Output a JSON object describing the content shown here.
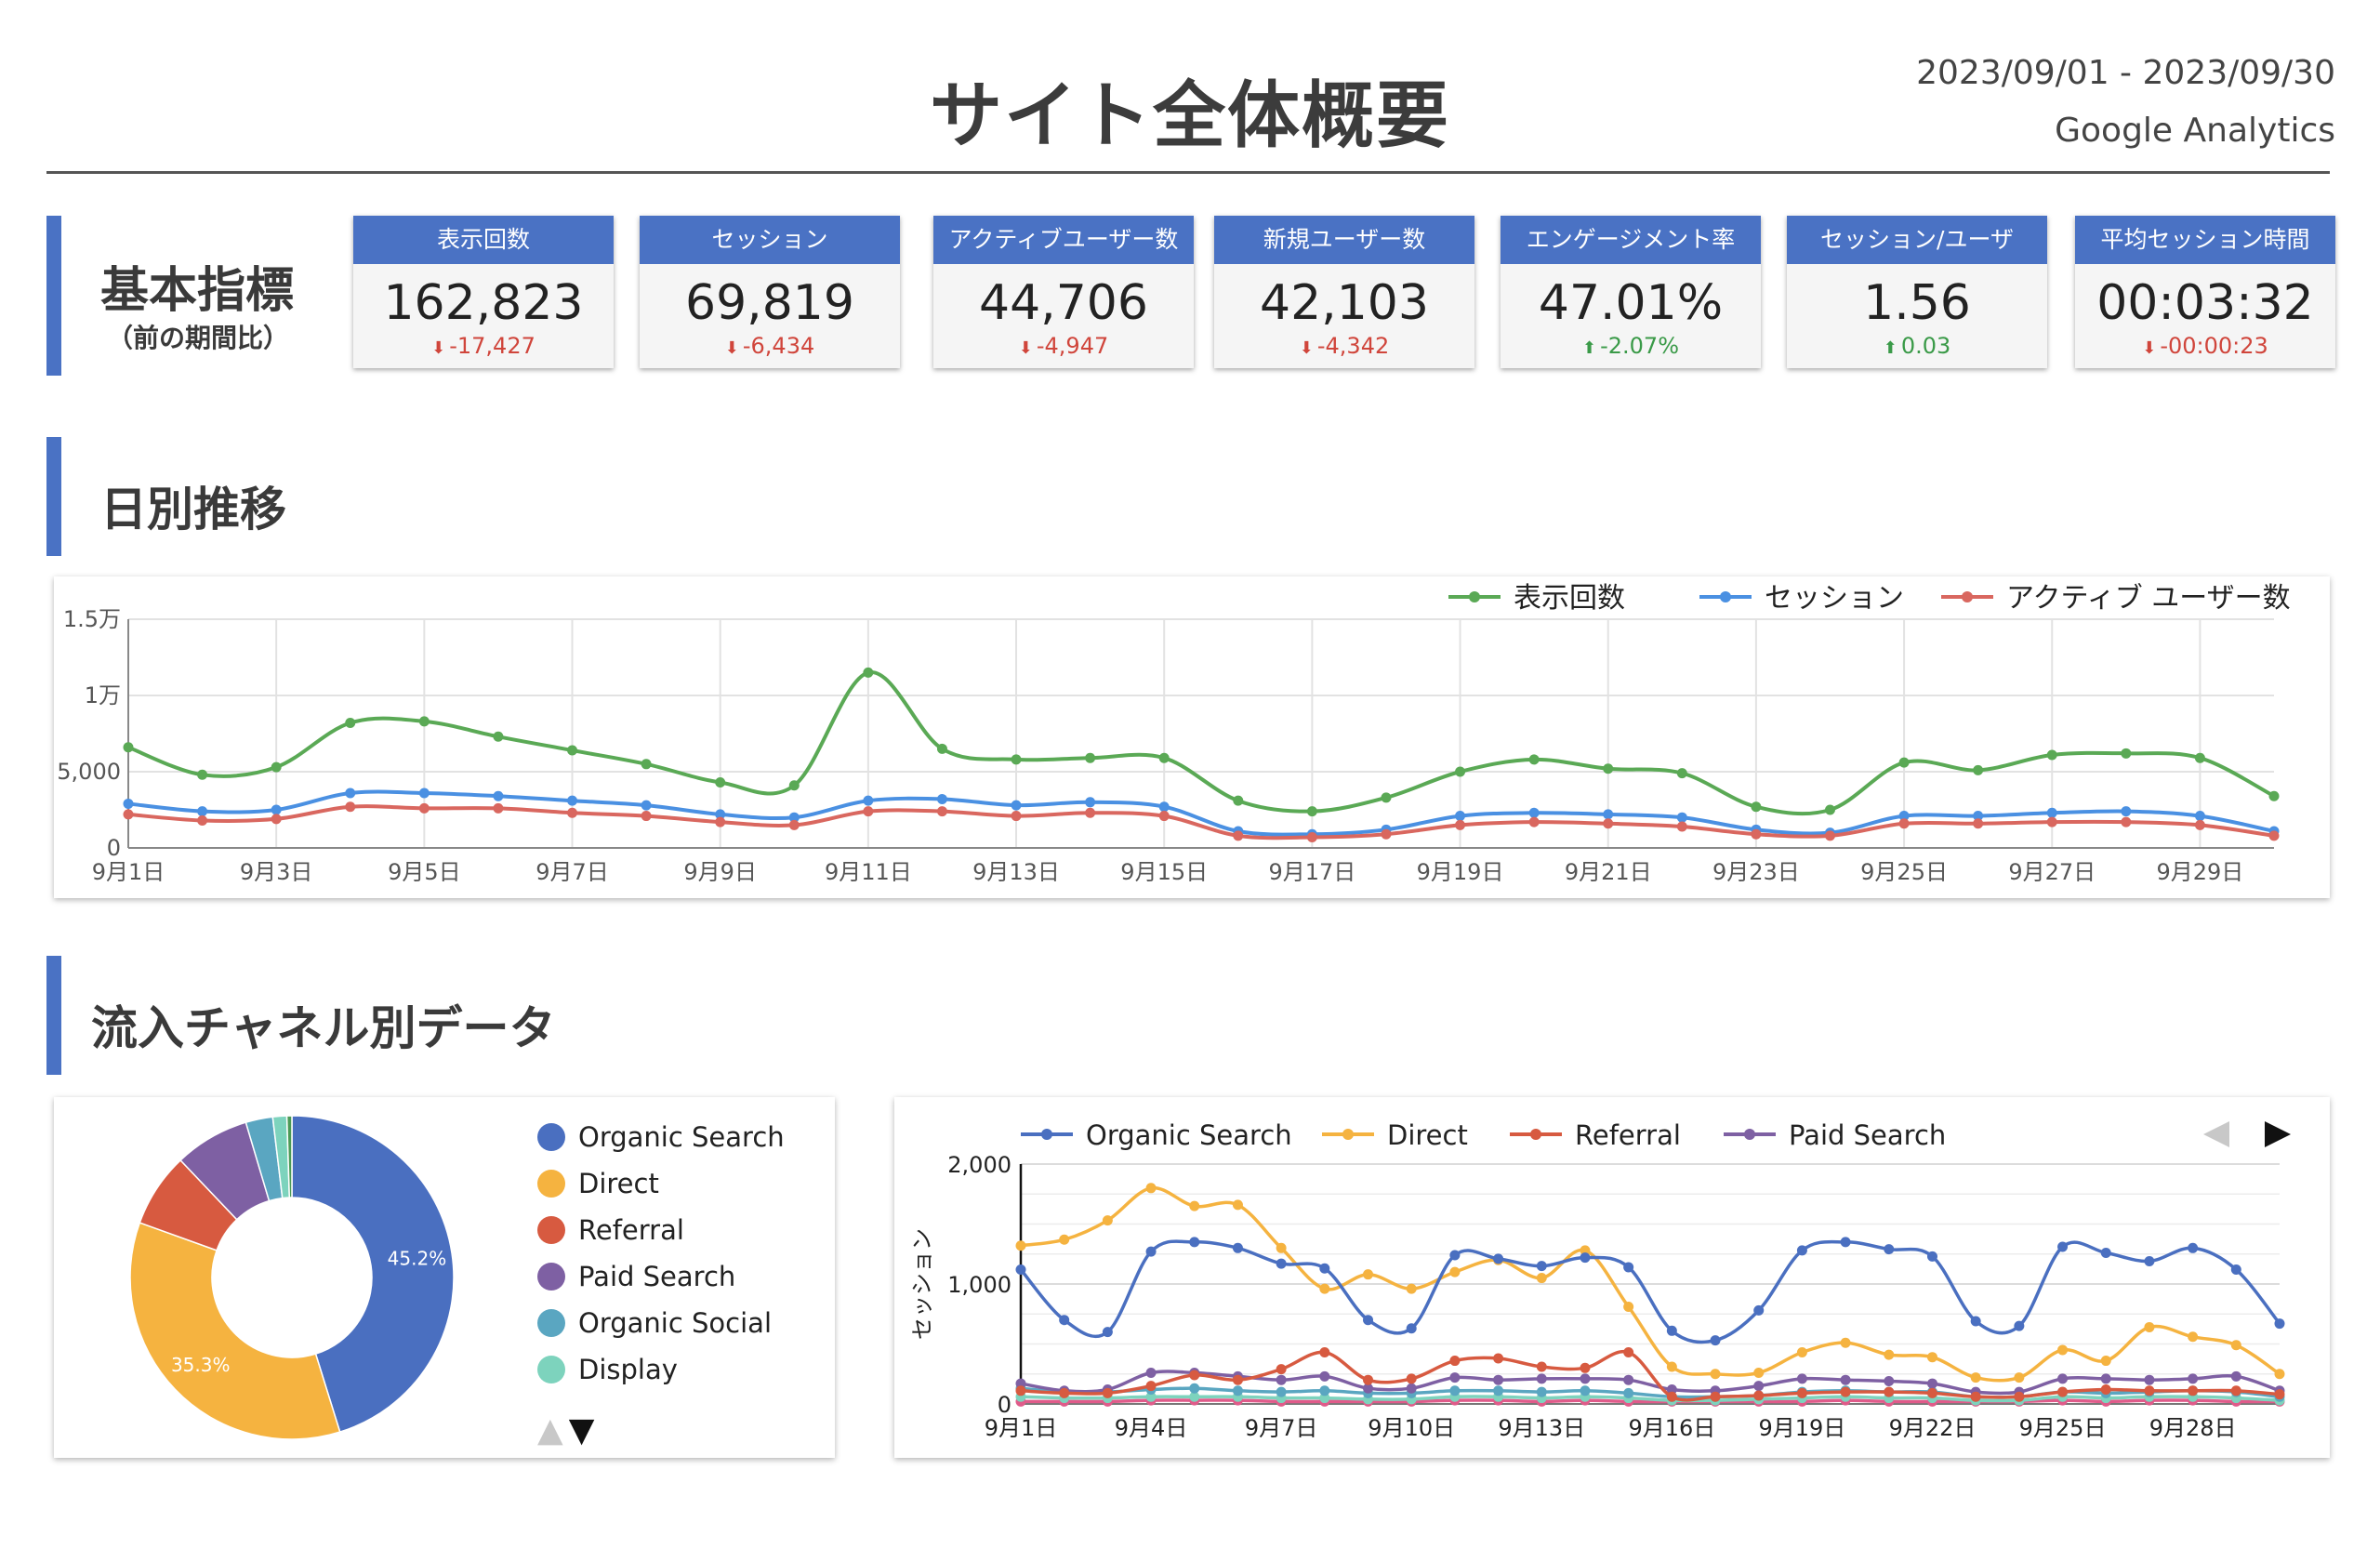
{
  "header": {
    "title": "サイト全体概要",
    "date_range": "2023/09/01 - 2023/09/30",
    "source": "Google Analytics"
  },
  "kpi_section": {
    "title": "基本指標",
    "subtitle": "（前の期間比）",
    "cards": [
      {
        "label": "表示回数",
        "value": "162,823",
        "delta": "-17,427",
        "direction": "down"
      },
      {
        "label": "セッション",
        "value": "69,819",
        "delta": "-6,434",
        "direction": "down"
      },
      {
        "label": "アクティブユーザー数",
        "value": "44,706",
        "delta": "-4,947",
        "direction": "down"
      },
      {
        "label": "新規ユーザー数",
        "value": "42,103",
        "delta": "-4,342",
        "direction": "down"
      },
      {
        "label": "エンゲージメント率",
        "value": "47.01%",
        "delta": "-2.07%",
        "direction": "up"
      },
      {
        "label": "セッション/ユーザ",
        "value": "1.56",
        "delta": "0.03",
        "direction": "up"
      },
      {
        "label": "平均セッション時間",
        "value": "00:03:32",
        "delta": "-00:00:23",
        "direction": "down"
      }
    ],
    "icons": {
      "down": "arrow-down-icon",
      "up": "arrow-up-icon"
    },
    "colors": {
      "header": "#4a72c4",
      "down": "#d0453b",
      "up": "#3a9a48"
    }
  },
  "daily_section": {
    "title": "日別推移"
  },
  "channel_section": {
    "title": "流入チャネル別データ"
  },
  "chart_data": [
    {
      "type": "line",
      "x": [
        "9月1日",
        "9月2日",
        "9月3日",
        "9月4日",
        "9月5日",
        "9月6日",
        "9月7日",
        "9月8日",
        "9月9日",
        "9月10日",
        "9月11日",
        "9月12日",
        "9月13日",
        "9月14日",
        "9月15日",
        "9月16日",
        "9月17日",
        "9月18日",
        "9月19日",
        "9月20日",
        "9月21日",
        "9月22日",
        "9月23日",
        "9月24日",
        "9月25日",
        "9月26日",
        "9月27日",
        "9月28日",
        "9月29日",
        "9月30日"
      ],
      "x_tick_labels": [
        "9月1日",
        "9月3日",
        "9月5日",
        "9月7日",
        "9月9日",
        "9月11日",
        "9月13日",
        "9月15日",
        "9月17日",
        "9月19日",
        "9月21日",
        "9月23日",
        "9月25日",
        "9月27日",
        "9月29日"
      ],
      "y_tick_labels": [
        "0",
        "5,000",
        "1万",
        "1.5万"
      ],
      "y_ticks": [
        0,
        5000,
        10000,
        15000
      ],
      "ylim": [
        0,
        15000
      ],
      "grid": true,
      "legend": "top-right",
      "series": [
        {
          "name": "表示回数",
          "color": "#5aa955",
          "values": [
            6600,
            4800,
            5300,
            8200,
            8300,
            7300,
            6400,
            5500,
            4300,
            4100,
            11500,
            6500,
            5800,
            5900,
            5900,
            3100,
            2400,
            3300,
            5000,
            5800,
            5200,
            4900,
            2700,
            2500,
            5600,
            5100,
            6100,
            6200,
            5900,
            3400
          ]
        },
        {
          "name": "セッション",
          "color": "#4a90e2",
          "values": [
            2900,
            2400,
            2500,
            3600,
            3600,
            3400,
            3100,
            2800,
            2200,
            2000,
            3100,
            3200,
            2800,
            3000,
            2700,
            1100,
            900,
            1200,
            2100,
            2300,
            2200,
            2000,
            1200,
            1000,
            2100,
            2100,
            2300,
            2400,
            2100,
            1100
          ]
        },
        {
          "name": "アクティブ ユーザー数",
          "color": "#d9675f",
          "values": [
            2200,
            1800,
            1900,
            2700,
            2600,
            2600,
            2300,
            2100,
            1700,
            1500,
            2400,
            2400,
            2100,
            2300,
            2100,
            800,
            700,
            900,
            1500,
            1700,
            1600,
            1400,
            900,
            800,
            1600,
            1600,
            1700,
            1700,
            1500,
            800
          ]
        }
      ]
    },
    {
      "type": "pie",
      "donut": true,
      "legend": "right",
      "slices": [
        {
          "name": "Organic Search",
          "value": 45.2,
          "color": "#4a6fc0",
          "label": "45.2%"
        },
        {
          "name": "Direct",
          "value": 35.3,
          "color": "#f5b340",
          "label": "35.3%"
        },
        {
          "name": "Referral",
          "value": 7.4,
          "color": "#d75a40",
          "label": ""
        },
        {
          "name": "Paid Search",
          "value": 7.5,
          "color": "#7e60a3",
          "label": ""
        },
        {
          "name": "Organic Social",
          "value": 2.7,
          "color": "#5aa6c1",
          "label": ""
        },
        {
          "name": "Display",
          "value": 1.4,
          "color": "#7dd3bd",
          "label": ""
        },
        {
          "name": "",
          "value": 0.5,
          "color": "#4a9a55",
          "label": ""
        }
      ]
    },
    {
      "type": "line",
      "ylabel": "セッション",
      "x": [
        "9月1日",
        "9月2日",
        "9月3日",
        "9月4日",
        "9月5日",
        "9月6日",
        "9月7日",
        "9月8日",
        "9月9日",
        "9月10日",
        "9月11日",
        "9月12日",
        "9月13日",
        "9月14日",
        "9月15日",
        "9月16日",
        "9月17日",
        "9月18日",
        "9月19日",
        "9月20日",
        "9月21日",
        "9月22日",
        "9月23日",
        "9月24日",
        "9月25日",
        "9月26日",
        "9月27日",
        "9月28日",
        "9月29日",
        "9月30日"
      ],
      "x_tick_labels": [
        "9月1日",
        "9月4日",
        "9月7日",
        "9月10日",
        "9月13日",
        "9月16日",
        "9月19日",
        "9月22日",
        "9月25日",
        "9月28日"
      ],
      "y_tick_labels": [
        "0",
        "1,000",
        "2,000"
      ],
      "y_ticks": [
        0,
        1000,
        2000
      ],
      "ylim": [
        0,
        2000
      ],
      "grid": true,
      "legend": "top",
      "series": [
        {
          "name": "Organic Search",
          "color": "#4a6fc0",
          "values": [
            1120,
            700,
            600,
            1270,
            1350,
            1300,
            1170,
            1130,
            700,
            630,
            1240,
            1210,
            1150,
            1220,
            1140,
            610,
            530,
            780,
            1280,
            1350,
            1290,
            1230,
            690,
            650,
            1310,
            1260,
            1190,
            1300,
            1120,
            670
          ]
        },
        {
          "name": "Direct",
          "color": "#f5b340",
          "values": [
            1320,
            1370,
            1530,
            1800,
            1650,
            1660,
            1300,
            960,
            1080,
            960,
            1100,
            1200,
            1050,
            1280,
            810,
            310,
            250,
            260,
            430,
            510,
            410,
            390,
            220,
            220,
            450,
            360,
            640,
            560,
            490,
            250
          ]
        },
        {
          "name": "Referral",
          "color": "#d75a40",
          "values": [
            110,
            90,
            90,
            150,
            240,
            200,
            290,
            430,
            200,
            210,
            360,
            380,
            310,
            300,
            430,
            60,
            60,
            70,
            90,
            100,
            100,
            90,
            60,
            60,
            100,
            120,
            110,
            110,
            110,
            80
          ]
        },
        {
          "name": "Paid Search",
          "color": "#7e60a3",
          "values": [
            170,
            110,
            120,
            260,
            260,
            230,
            200,
            230,
            130,
            130,
            220,
            200,
            210,
            210,
            200,
            120,
            110,
            150,
            210,
            200,
            190,
            170,
            100,
            100,
            210,
            210,
            200,
            210,
            230,
            110
          ]
        },
        {
          "name": "",
          "color": "#5aa6c1",
          "values": [
            130,
            100,
            100,
            120,
            130,
            110,
            100,
            110,
            90,
            90,
            110,
            110,
            100,
            110,
            90,
            60,
            60,
            70,
            100,
            110,
            100,
            100,
            60,
            60,
            100,
            90,
            100,
            110,
            100,
            60
          ]
        },
        {
          "name": "",
          "color": "#7dd3bd",
          "values": [
            60,
            50,
            50,
            60,
            60,
            60,
            50,
            50,
            40,
            40,
            60,
            60,
            50,
            60,
            50,
            30,
            30,
            40,
            50,
            60,
            50,
            50,
            30,
            30,
            60,
            50,
            60,
            60,
            50,
            30
          ]
        },
        {
          "name": "",
          "color": "#e05b8a",
          "values": [
            20,
            20,
            20,
            30,
            30,
            30,
            20,
            20,
            20,
            20,
            30,
            30,
            20,
            30,
            20,
            20,
            20,
            20,
            20,
            30,
            20,
            20,
            20,
            20,
            30,
            20,
            30,
            30,
            20,
            20
          ]
        }
      ],
      "pager_icons": {
        "prev": "triangle-left-icon",
        "next": "triangle-right-icon"
      }
    }
  ]
}
